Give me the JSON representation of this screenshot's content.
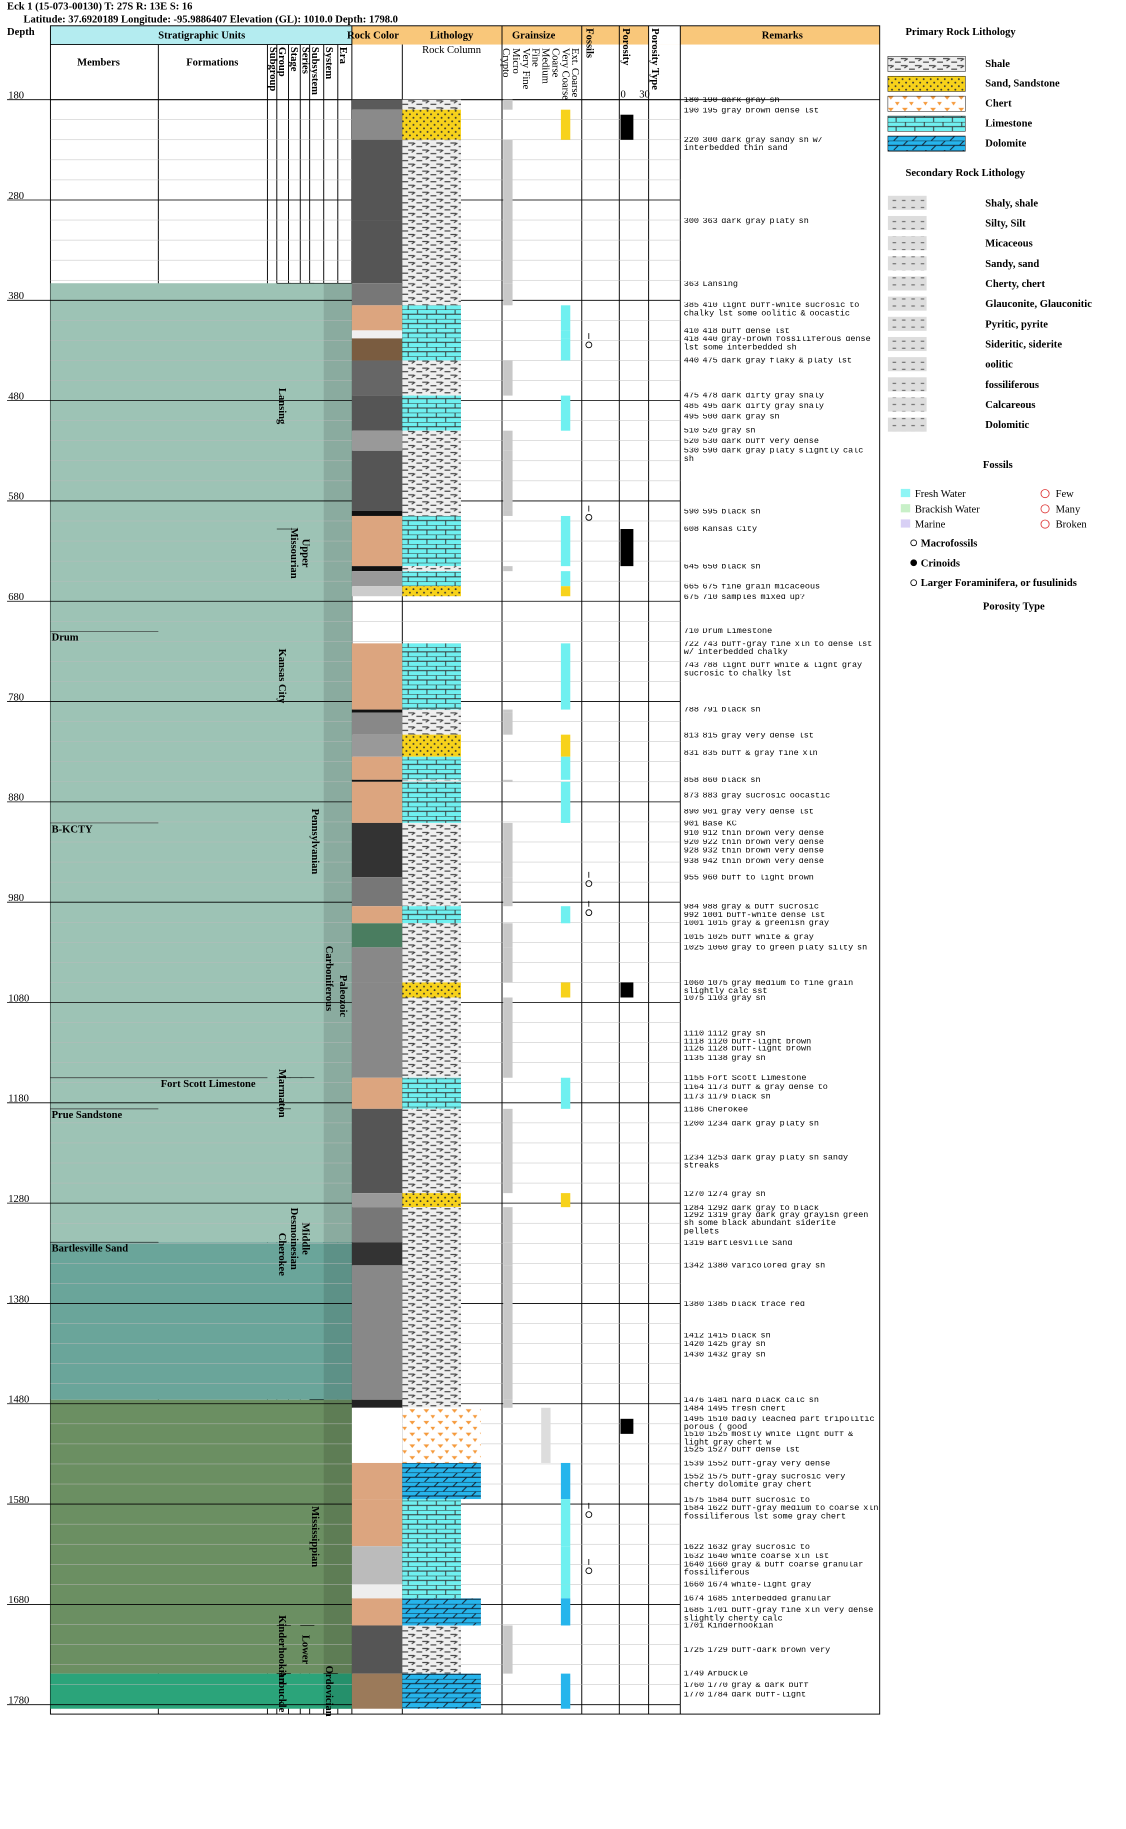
{
  "header": {
    "line1": "Eck 1 (15-073-00130) T: 27S R: 13E S: 16",
    "line2": "Latitude: 37.6920189 Longitude: -95.9886407 Elevation (GL): 1010.0 Depth: 1798.0"
  },
  "columns": {
    "depth": "Depth",
    "strat": "Stratigraphic Units",
    "members": "Members",
    "formations": "Formations",
    "units": [
      "Subgroup",
      "Group",
      "Stage",
      "Series",
      "Subsystem",
      "System",
      "Era"
    ],
    "rock_color": "Rock Color",
    "lithology": "Lithology",
    "rock_column": "Rock Column",
    "grainsize": "Grainsize",
    "grains": [
      "Crypto",
      "Micro",
      "Very Fine",
      "Fine",
      "Medium",
      "Coarse",
      "Very Coarse",
      "Ext. Coarse"
    ],
    "fossils": "Fossils",
    "porosity": "Porosity",
    "porosity_scale": [
      0,
      30
    ],
    "porosity_type": "Porosity Type",
    "remarks": "Remarks"
  },
  "depth_ticks": [
    180,
    280,
    380,
    480,
    580,
    680,
    780,
    880,
    980,
    1080,
    1180,
    1280,
    1380,
    1480,
    1580,
    1680,
    1780
  ],
  "strat_bands": [
    {
      "top": 363,
      "base": 1319,
      "color": "#9dc3b5"
    },
    {
      "top": 1319,
      "base": 1476,
      "color": "#6aa59a"
    },
    {
      "top": 1476,
      "base": 1749,
      "color": "#6b8f62"
    },
    {
      "top": 1749,
      "base": 1784,
      "color": "#2ba47a"
    }
  ],
  "members": [
    {
      "name": "Drum",
      "top": 710
    },
    {
      "name": "B-KCTY",
      "top": 901
    },
    {
      "name": "Prue Sandstone",
      "top": 1186
    },
    {
      "name": "Bartlesville Sand",
      "top": 1319
    }
  ],
  "formations": [
    {
      "name": "Fort Scott Limestone",
      "top": 1155
    }
  ],
  "units": [
    {
      "unit": "Group",
      "name": "Lansing",
      "top": 363,
      "base": 608
    },
    {
      "unit": "Group",
      "name": "Kansas City",
      "top": 608,
      "base": 901
    },
    {
      "unit": "Group",
      "name": "Marmaton",
      "top": 1155,
      "base": 1186
    },
    {
      "unit": "Group",
      "name": "Cherokee",
      "top": 1186,
      "base": 1476
    },
    {
      "unit": "Group",
      "name": "Kinderhookian",
      "top": 1701,
      "base": 1749
    },
    {
      "unit": "Group",
      "name": "Arbuckle",
      "top": 1749,
      "base": 1784
    },
    {
      "unit": "Stage",
      "name": "Missourian",
      "top": 363,
      "base": 901
    },
    {
      "unit": "Stage",
      "name": "Desmoinesian",
      "top": 1155,
      "base": 1476
    },
    {
      "unit": "Series",
      "name": "Upper",
      "top": 363,
      "base": 901
    },
    {
      "unit": "Series",
      "name": "Middle",
      "top": 1155,
      "base": 1476
    },
    {
      "unit": "Series",
      "name": "Lower",
      "top": 1701,
      "base": 1749
    },
    {
      "unit": "Subsystem",
      "name": "Pennsylvanian",
      "top": 363,
      "base": 1476
    },
    {
      "unit": "Subsystem",
      "name": "Mississippian",
      "top": 1476,
      "base": 1749
    },
    {
      "unit": "System",
      "name": "Carboniferous",
      "top": 363,
      "base": 1749
    },
    {
      "unit": "System",
      "name": "Ordovician",
      "top": 1749,
      "base": 1784
    },
    {
      "unit": "Era",
      "name": "Paleozoic",
      "top": 363,
      "base": 1784
    }
  ],
  "lithology": [
    [
      180,
      190,
      "shale",
      "#5a5a5a"
    ],
    [
      190,
      220,
      "sand",
      "#8a8a8a"
    ],
    [
      220,
      300,
      "shale",
      "#555555"
    ],
    [
      300,
      363,
      "shale",
      "#555555"
    ],
    [
      363,
      385,
      "shale",
      "#777777"
    ],
    [
      385,
      410,
      "limestone",
      "#dca57f"
    ],
    [
      410,
      418,
      "limestone",
      "#f0f0f0"
    ],
    [
      418,
      440,
      "limestone",
      "#7a5c40"
    ],
    [
      440,
      475,
      "shale",
      "#666666"
    ],
    [
      475,
      510,
      "limestone",
      "#555555"
    ],
    [
      510,
      530,
      "shale",
      "#999999"
    ],
    [
      530,
      590,
      "shale",
      "#555555"
    ],
    [
      590,
      595,
      "shale",
      "#111111"
    ],
    [
      595,
      645,
      "limestone",
      "#dca57f"
    ],
    [
      645,
      650,
      "shale",
      "#111111"
    ],
    [
      650,
      665,
      "limestone",
      "#999999"
    ],
    [
      665,
      675,
      "sand",
      "#cccccc"
    ],
    [
      722,
      788,
      "limestone",
      "#dca57f"
    ],
    [
      788,
      791,
      "shale",
      "#111111"
    ],
    [
      791,
      813,
      "shale",
      "#888888"
    ],
    [
      813,
      835,
      "sand",
      "#999999"
    ],
    [
      835,
      858,
      "limestone",
      "#dca57f"
    ],
    [
      858,
      860,
      "shale",
      "#111111"
    ],
    [
      860,
      901,
      "limestone",
      "#dca57f"
    ],
    [
      901,
      955,
      "shale",
      "#333333"
    ],
    [
      955,
      984,
      "shale",
      "#777777"
    ],
    [
      984,
      1001,
      "limestone",
      "#dca57f"
    ],
    [
      1001,
      1025,
      "shale",
      "#4a7d60"
    ],
    [
      1025,
      1060,
      "shale",
      "#888888"
    ],
    [
      1060,
      1075,
      "sand",
      "#888888"
    ],
    [
      1075,
      1155,
      "shale",
      "#888888"
    ],
    [
      1155,
      1186,
      "limestone",
      "#dca57f"
    ],
    [
      1186,
      1270,
      "shale",
      "#555555"
    ],
    [
      1270,
      1284,
      "sand",
      "#999999"
    ],
    [
      1284,
      1319,
      "shale",
      "#777777"
    ],
    [
      1319,
      1342,
      "shale",
      "#333333"
    ],
    [
      1342,
      1476,
      "shale",
      "#888888"
    ],
    [
      1476,
      1484,
      "shale",
      "#222222"
    ],
    [
      1484,
      1539,
      "chert",
      "#ffffff"
    ],
    [
      1539,
      1575,
      "dolomite",
      "#dca57f"
    ],
    [
      1575,
      1622,
      "limestone",
      "#dca57f"
    ],
    [
      1622,
      1660,
      "limestone",
      "#bbbbbb"
    ],
    [
      1660,
      1674,
      "limestone",
      "#eeeeee"
    ],
    [
      1674,
      1701,
      "dolomite",
      "#dca57f"
    ],
    [
      1701,
      1749,
      "shale",
      "#555555"
    ],
    [
      1749,
      1784,
      "dolomite",
      "#9b7a5a"
    ]
  ],
  "porosity": [
    [
      195,
      220
    ],
    [
      608,
      645
    ],
    [
      1060,
      1075
    ],
    [
      1495,
      1510
    ]
  ],
  "fossils": [
    418,
    590,
    955,
    984,
    1584,
    1640
  ],
  "remarks": [
    {
      "top": 180,
      "base": 190,
      "text": "dark gray sh"
    },
    {
      "top": 190,
      "base": 195,
      "text": "gray brown dense lst"
    },
    {
      "top": 220,
      "base": 300,
      "text": "dark gray sandy sh w/ interbedded thin sand"
    },
    {
      "top": 300,
      "base": 363,
      "text": "dark gray platy sh"
    },
    {
      "top": 363,
      "text": "Lansing"
    },
    {
      "top": 385,
      "base": 410,
      "text": "light buff-white sucrosic to chalky lst some oolitic & oocastic"
    },
    {
      "top": 410,
      "base": 418,
      "text": "buff dense lst"
    },
    {
      "top": 418,
      "base": 440,
      "text": "gray-brown fossiliferous dense lst some interbedded sh"
    },
    {
      "top": 440,
      "base": 475,
      "text": "dark gray flaky & platy lst"
    },
    {
      "top": 475,
      "base": 478,
      "text": "dark dirty gray shaly"
    },
    {
      "top": 485,
      "base": 495,
      "text": "dark dirty gray shaly"
    },
    {
      "top": 495,
      "base": 500,
      "text": "dark gray sh"
    },
    {
      "top": 510,
      "base": 520,
      "text": "gray sh"
    },
    {
      "top": 520,
      "base": 530,
      "text": "dark buff very dense"
    },
    {
      "top": 530,
      "base": 590,
      "text": "dark gray platy slightly calc sh"
    },
    {
      "top": 590,
      "base": 595,
      "text": "black sh"
    },
    {
      "top": 608,
      "text": "Kansas City"
    },
    {
      "top": 645,
      "base": 650,
      "text": "black sh"
    },
    {
      "top": 665,
      "base": 675,
      "text": "fine grain micaceous"
    },
    {
      "top": 675,
      "base": 710,
      "text": "samples mixed up?"
    },
    {
      "top": 710,
      "text": "Drum Limestone"
    },
    {
      "top": 722,
      "base": 743,
      "text": "buff-gray fine xln to dense lst w/ interbedded chalky"
    },
    {
      "top": 743,
      "base": 788,
      "text": "light buff white & light gray sucrosic to chalky lst"
    },
    {
      "top": 788,
      "base": 791,
      "text": "black sh"
    },
    {
      "top": 813,
      "base": 815,
      "text": "gray very dense lst"
    },
    {
      "top": 831,
      "base": 835,
      "text": "buff & gray fine xln"
    },
    {
      "top": 858,
      "base": 860,
      "text": "black sh"
    },
    {
      "top": 873,
      "base": 883,
      "text": "gray sucrosic oocastic"
    },
    {
      "top": 890,
      "base": 901,
      "text": "gray very dense lst"
    },
    {
      "top": 901,
      "text": "Base KC"
    },
    {
      "top": 910,
      "base": 912,
      "text": "thin brown very dense"
    },
    {
      "top": 920,
      "base": 922,
      "text": "thin brown very dense"
    },
    {
      "top": 928,
      "base": 932,
      "text": "thin brown very dense"
    },
    {
      "top": 938,
      "base": 942,
      "text": "thin brown very dense"
    },
    {
      "top": 955,
      "base": 960,
      "text": "buff to light brown"
    },
    {
      "top": 984,
      "base": 988,
      "text": "gray & buff sucrosic"
    },
    {
      "top": 992,
      "base": 1001,
      "text": "buff-white dense lst"
    },
    {
      "top": 1001,
      "base": 1015,
      "text": "gray & greenish gray"
    },
    {
      "top": 1015,
      "base": 1025,
      "text": "buff white & gray"
    },
    {
      "top": 1025,
      "base": 1060,
      "text": "gray to green platy silty sh"
    },
    {
      "top": 1060,
      "base": 1075,
      "text": "gray medium to fine grain slightly calc sst"
    },
    {
      "top": 1075,
      "base": 1103,
      "text": "gray sh"
    },
    {
      "top": 1110,
      "base": 1112,
      "text": "gray sh"
    },
    {
      "top": 1118,
      "base": 1120,
      "text": "buff-light brown"
    },
    {
      "top": 1126,
      "base": 1128,
      "text": "buff-light brown"
    },
    {
      "top": 1135,
      "base": 1138,
      "text": "gray sh"
    },
    {
      "top": 1155,
      "text": "Fort Scott Limestone"
    },
    {
      "top": 1164,
      "base": 1173,
      "text": "buff & gray dense to"
    },
    {
      "top": 1173,
      "base": 1179,
      "text": "black sh"
    },
    {
      "top": 1186,
      "text": "Cherokee"
    },
    {
      "top": 1200,
      "base": 1234,
      "text": "dark gray platy sh"
    },
    {
      "top": 1234,
      "base": 1253,
      "text": "dark gray platy sh sandy streaks"
    },
    {
      "top": 1270,
      "base": 1274,
      "text": "gray sh"
    },
    {
      "top": 1284,
      "base": 1292,
      "text": "dark gray to black"
    },
    {
      "top": 1292,
      "base": 1319,
      "text": "gray dark gray grayish green sh some black abundant siderite pellets"
    },
    {
      "top": 1319,
      "text": "Bartlesville Sand"
    },
    {
      "top": 1342,
      "base": 1380,
      "text": "varicolored gray sh"
    },
    {
      "top": 1380,
      "base": 1385,
      "text": "black trace red"
    },
    {
      "top": 1412,
      "base": 1415,
      "text": "black sh"
    },
    {
      "top": 1420,
      "base": 1425,
      "text": "gray sh"
    },
    {
      "top": 1430,
      "base": 1432,
      "text": "gray sh"
    },
    {
      "top": 1476,
      "base": 1481,
      "text": "hard black calc sh"
    },
    {
      "top": 1484,
      "base": 1495,
      "text": "fresh chert"
    },
    {
      "top": 1495,
      "base": 1510,
      "text": "badly leached part tripolitic porous ( good"
    },
    {
      "top": 1510,
      "base": 1525,
      "text": "mostly white light buff & light gray chert w"
    },
    {
      "top": 1525,
      "base": 1527,
      "text": "buff dense lst"
    },
    {
      "top": 1539,
      "base": 1552,
      "text": "buff-gray very dense"
    },
    {
      "top": 1552,
      "base": 1575,
      "text": "buff-gray sucrosic very cherty dolomite gray chert"
    },
    {
      "top": 1575,
      "base": 1584,
      "text": "buff sucrosic to"
    },
    {
      "top": 1584,
      "base": 1622,
      "text": "buff-gray medium to coarse xln fossiliferous lst some gray chert"
    },
    {
      "top": 1622,
      "base": 1632,
      "text": "gray sucrosic to"
    },
    {
      "top": 1632,
      "base": 1640,
      "text": "white coarse xln lst"
    },
    {
      "top": 1640,
      "base": 1660,
      "text": "gray & buff coarse granular fossiliferous"
    },
    {
      "top": 1660,
      "base": 1674,
      "text": "white-light gray"
    },
    {
      "top": 1674,
      "base": 1685,
      "text": "interbedded granular"
    },
    {
      "top": 1685,
      "base": 1701,
      "text": "buff-gray fine xln very dense slightly cherty calc"
    },
    {
      "top": 1701,
      "text": "Kinderhookian"
    },
    {
      "top": 1725,
      "base": 1729,
      "text": "buff-dark brown very"
    },
    {
      "top": 1749,
      "text": "Arbuckle"
    },
    {
      "top": 1760,
      "base": 1770,
      "text": "gray & dark buff"
    },
    {
      "top": 1770,
      "base": 1784,
      "text": "dark buff-light"
    }
  ],
  "legend": {
    "primary_title": "Primary Rock Lithology",
    "primary": [
      [
        "shale",
        "Shale"
      ],
      [
        "sand",
        "Sand, Sandstone"
      ],
      [
        "chert",
        "Chert"
      ],
      [
        "limestone",
        "Limestone"
      ],
      [
        "dolomite",
        "Dolomite"
      ]
    ],
    "secondary_title": "Secondary Rock Lithology",
    "secondary": [
      "Shaly, shale",
      "Silty, Silt",
      "Micaceous",
      "Sandy, sand",
      "Cherty, chert",
      "Glauconite, Glauconitic",
      "Pyritic, pyrite",
      "Sideritic, siderite",
      "oolitic",
      "fossiliferous",
      "Calcareous",
      "Dolomitic"
    ],
    "fossils_title": "Fossils",
    "environments": [
      "Fresh Water",
      "Brackish Water",
      "Marine"
    ],
    "abundance": [
      "Few",
      "Many",
      "Broken"
    ],
    "fossil_kinds": [
      "Macrofossils",
      "Crinoids",
      "Larger Foraminifera, or fusulinids"
    ],
    "porosity_title": "Porosity Type"
  }
}
